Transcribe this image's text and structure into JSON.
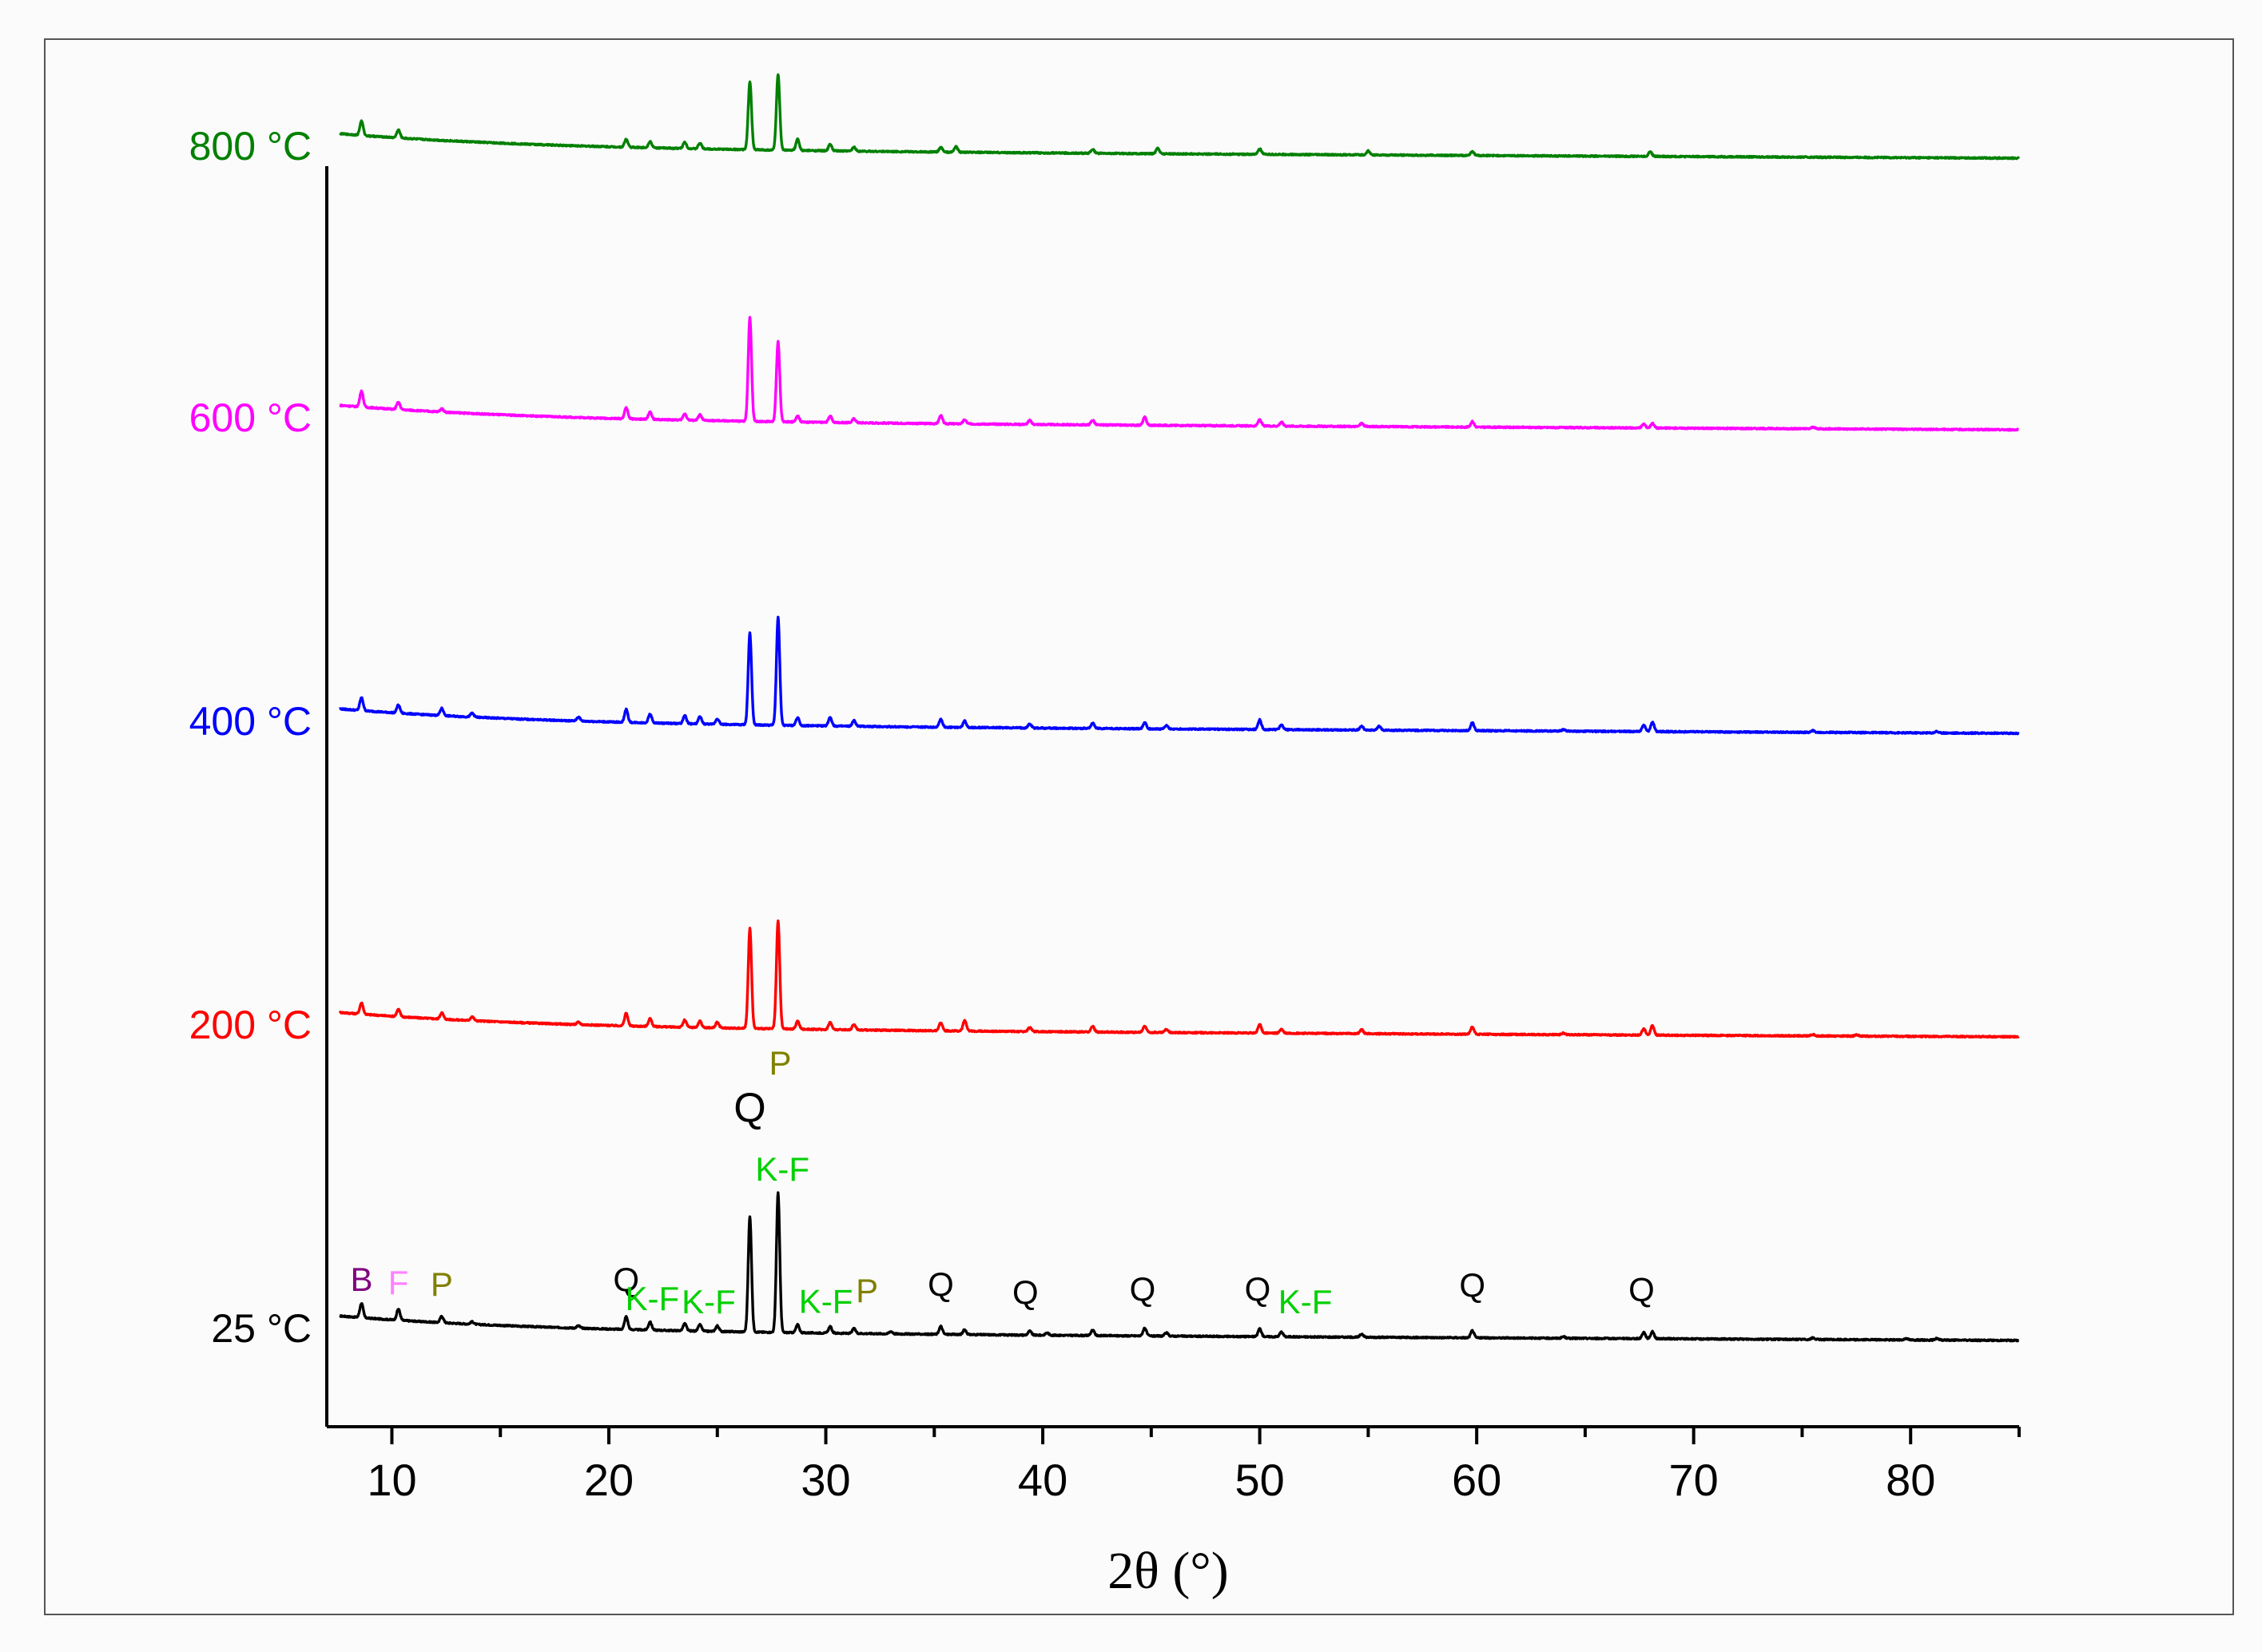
{
  "chart_data": {
    "type": "line",
    "xlabel": "2θ (°)",
    "xlim": [
      7,
      85
    ],
    "x_ticks": [
      10,
      20,
      30,
      40,
      50,
      60,
      70,
      80
    ],
    "y_axis_shown": false,
    "x_axis_unit": "°",
    "series": [
      {
        "name": "25 °C",
        "color": "#000000",
        "baseline": 0,
        "peaks": [
          [
            8.6,
            18
          ],
          [
            10.3,
            14
          ],
          [
            12.3,
            8
          ],
          [
            13.7,
            3
          ],
          [
            18.6,
            3
          ],
          [
            20.8,
            16
          ],
          [
            21.9,
            10
          ],
          [
            23.5,
            9
          ],
          [
            24.2,
            8
          ],
          [
            25.0,
            7
          ],
          [
            26.5,
            145
          ],
          [
            27.8,
            175
          ],
          [
            28.7,
            10
          ],
          [
            30.2,
            8
          ],
          [
            31.3,
            6
          ],
          [
            33.0,
            3
          ],
          [
            35.3,
            10
          ],
          [
            36.4,
            6
          ],
          [
            39.4,
            5
          ],
          [
            40.2,
            3
          ],
          [
            42.3,
            7
          ],
          [
            44.7,
            10
          ],
          [
            45.7,
            4
          ],
          [
            50.0,
            10
          ],
          [
            51.0,
            6
          ],
          [
            54.7,
            4
          ],
          [
            59.8,
            9
          ],
          [
            64.0,
            2
          ],
          [
            67.7,
            8
          ],
          [
            68.1,
            9
          ],
          [
            75.5,
            2
          ],
          [
            79.8,
            2
          ],
          [
            81.2,
            2
          ]
        ]
      },
      {
        "name": "200 °C",
        "color": "#ff0000",
        "baseline": 380,
        "peaks": [
          [
            8.6,
            14
          ],
          [
            10.3,
            9
          ],
          [
            12.3,
            8
          ],
          [
            13.7,
            5
          ],
          [
            18.6,
            3
          ],
          [
            20.8,
            16
          ],
          [
            21.9,
            10
          ],
          [
            23.5,
            9
          ],
          [
            24.2,
            8
          ],
          [
            25.0,
            7
          ],
          [
            26.5,
            125
          ],
          [
            27.8,
            135
          ],
          [
            28.7,
            10
          ],
          [
            30.2,
            9
          ],
          [
            31.3,
            7
          ],
          [
            35.3,
            10
          ],
          [
            36.4,
            13
          ],
          [
            39.4,
            5
          ],
          [
            42.3,
            7
          ],
          [
            44.7,
            8
          ],
          [
            45.7,
            4
          ],
          [
            50.0,
            11
          ],
          [
            51.0,
            5
          ],
          [
            54.7,
            5
          ],
          [
            59.8,
            9
          ],
          [
            64.0,
            2
          ],
          [
            67.7,
            8
          ],
          [
            68.1,
            12
          ],
          [
            75.5,
            2
          ],
          [
            77.5,
            2
          ]
        ]
      },
      {
        "name": "400 °C",
        "color": "#0000ff",
        "baseline": 760,
        "peaks": [
          [
            8.6,
            16
          ],
          [
            10.3,
            10
          ],
          [
            12.3,
            9
          ],
          [
            13.7,
            5
          ],
          [
            18.6,
            5
          ],
          [
            20.8,
            16
          ],
          [
            21.9,
            11
          ],
          [
            23.5,
            10
          ],
          [
            24.2,
            9
          ],
          [
            25.0,
            7
          ],
          [
            26.5,
            115
          ],
          [
            27.8,
            135
          ],
          [
            28.7,
            10
          ],
          [
            30.2,
            11
          ],
          [
            31.3,
            7
          ],
          [
            35.3,
            10
          ],
          [
            36.4,
            8
          ],
          [
            39.4,
            5
          ],
          [
            42.3,
            7
          ],
          [
            44.7,
            8
          ],
          [
            45.7,
            4
          ],
          [
            50.0,
            12
          ],
          [
            51.0,
            6
          ],
          [
            54.7,
            5
          ],
          [
            55.5,
            5
          ],
          [
            59.8,
            10
          ],
          [
            64.0,
            2
          ],
          [
            67.7,
            8
          ],
          [
            68.1,
            12
          ],
          [
            75.5,
            2
          ],
          [
            81.2,
            2
          ]
        ]
      },
      {
        "name": "600 °C",
        "color": "#ff00ff",
        "baseline": 1140,
        "peaks": [
          [
            8.6,
            20
          ],
          [
            10.3,
            9
          ],
          [
            12.3,
            4
          ],
          [
            20.8,
            14
          ],
          [
            21.9,
            9
          ],
          [
            23.5,
            8
          ],
          [
            24.2,
            7
          ],
          [
            26.5,
            130
          ],
          [
            27.8,
            100
          ],
          [
            28.7,
            8
          ],
          [
            30.2,
            8
          ],
          [
            31.3,
            5
          ],
          [
            35.3,
            10
          ],
          [
            36.4,
            5
          ],
          [
            39.4,
            5
          ],
          [
            42.3,
            6
          ],
          [
            44.7,
            10
          ],
          [
            50.0,
            8
          ],
          [
            51.0,
            5
          ],
          [
            54.7,
            4
          ],
          [
            59.8,
            7
          ],
          [
            67.7,
            5
          ],
          [
            68.1,
            6
          ],
          [
            75.5,
            2
          ]
        ]
      },
      {
        "name": "800 °C",
        "color": "#008000",
        "baseline": 1480,
        "peaks": [
          [
            8.6,
            18
          ],
          [
            10.3,
            10
          ],
          [
            20.8,
            10
          ],
          [
            21.9,
            8
          ],
          [
            23.5,
            8
          ],
          [
            24.2,
            7
          ],
          [
            26.5,
            85
          ],
          [
            27.8,
            95
          ],
          [
            28.7,
            14
          ],
          [
            30.2,
            8
          ],
          [
            31.3,
            5
          ],
          [
            35.3,
            6
          ],
          [
            36.0,
            7
          ],
          [
            42.3,
            5
          ],
          [
            45.3,
            7
          ],
          [
            50.0,
            7
          ],
          [
            55.0,
            5
          ],
          [
            59.8,
            5
          ],
          [
            68.0,
            6
          ]
        ]
      }
    ],
    "peak_labels": [
      {
        "text": "B",
        "x": 8.6,
        "color": "#800080",
        "series": "25 °C"
      },
      {
        "text": "F",
        "x": 10.3,
        "color": "#ff80ff",
        "series": "25 °C"
      },
      {
        "text": "P",
        "x": 12.3,
        "color": "#808000",
        "series": "25 °C"
      },
      {
        "text": "Q",
        "x": 20.8,
        "color": "#000000",
        "series": "25 °C"
      },
      {
        "text": "K-F",
        "x": 22.0,
        "color": "#00d000",
        "series": "25 °C"
      },
      {
        "text": "K-F",
        "x": 24.6,
        "color": "#00d000",
        "series": "25 °C"
      },
      {
        "text": "Q",
        "x": 26.5,
        "color": "#000000",
        "series": "25 °C"
      },
      {
        "text": "P",
        "x": 27.9,
        "color": "#808000",
        "series": "25 °C"
      },
      {
        "text": "K-F",
        "x": 28.0,
        "color": "#00d000",
        "series": "25 °C"
      },
      {
        "text": "K-F",
        "x": 30.0,
        "color": "#00d000",
        "series": "25 °C"
      },
      {
        "text": "P",
        "x": 31.9,
        "color": "#808000",
        "series": "25 °C"
      },
      {
        "text": "Q",
        "x": 35.3,
        "color": "#000000",
        "series": "25 °C"
      },
      {
        "text": "Q",
        "x": 39.2,
        "color": "#000000",
        "series": "25 °C"
      },
      {
        "text": "Q",
        "x": 44.6,
        "color": "#000000",
        "series": "25 °C"
      },
      {
        "text": "Q",
        "x": 49.9,
        "color": "#000000",
        "series": "25 °C"
      },
      {
        "text": "K-F",
        "x": 52.1,
        "color": "#00d000",
        "series": "25 °C"
      },
      {
        "text": "Q",
        "x": 59.8,
        "color": "#000000",
        "series": "25 °C"
      },
      {
        "text": "Q",
        "x": 67.6,
        "color": "#000000",
        "series": "25 °C"
      }
    ]
  }
}
